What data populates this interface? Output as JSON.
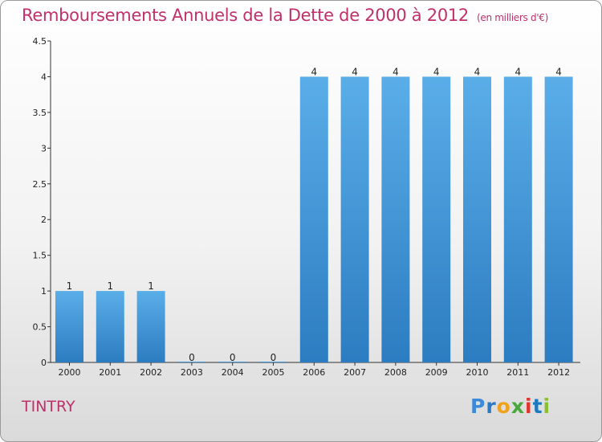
{
  "chart_data": {
    "type": "bar",
    "title": "Remboursements Annuels de la Dette de 2000 à 2012",
    "unit": "(en milliers d'€)",
    "categories": [
      "2000",
      "2001",
      "2002",
      "2003",
      "2004",
      "2005",
      "2006",
      "2007",
      "2008",
      "2009",
      "2010",
      "2011",
      "2012"
    ],
    "values": [
      1,
      1,
      1,
      0,
      0,
      0,
      4,
      4,
      4,
      4,
      4,
      4,
      4
    ],
    "value_labels": [
      "1",
      "1",
      "1",
      "0",
      "0",
      "0",
      "4",
      "4",
      "4",
      "4",
      "4",
      "4",
      "4"
    ],
    "ylim": [
      0,
      4.5
    ],
    "yticks": [
      "0",
      "0.5",
      "1",
      "1.5",
      "2",
      "2.5",
      "3",
      "3.5",
      "4",
      "4.5"
    ],
    "xlabel": "",
    "ylabel": "",
    "grid": false,
    "bar_color": "#4a9de0"
  },
  "commune": "TINTRY",
  "logo": {
    "text": [
      "P",
      "r",
      "o",
      "x",
      "i",
      "t",
      "i"
    ]
  }
}
